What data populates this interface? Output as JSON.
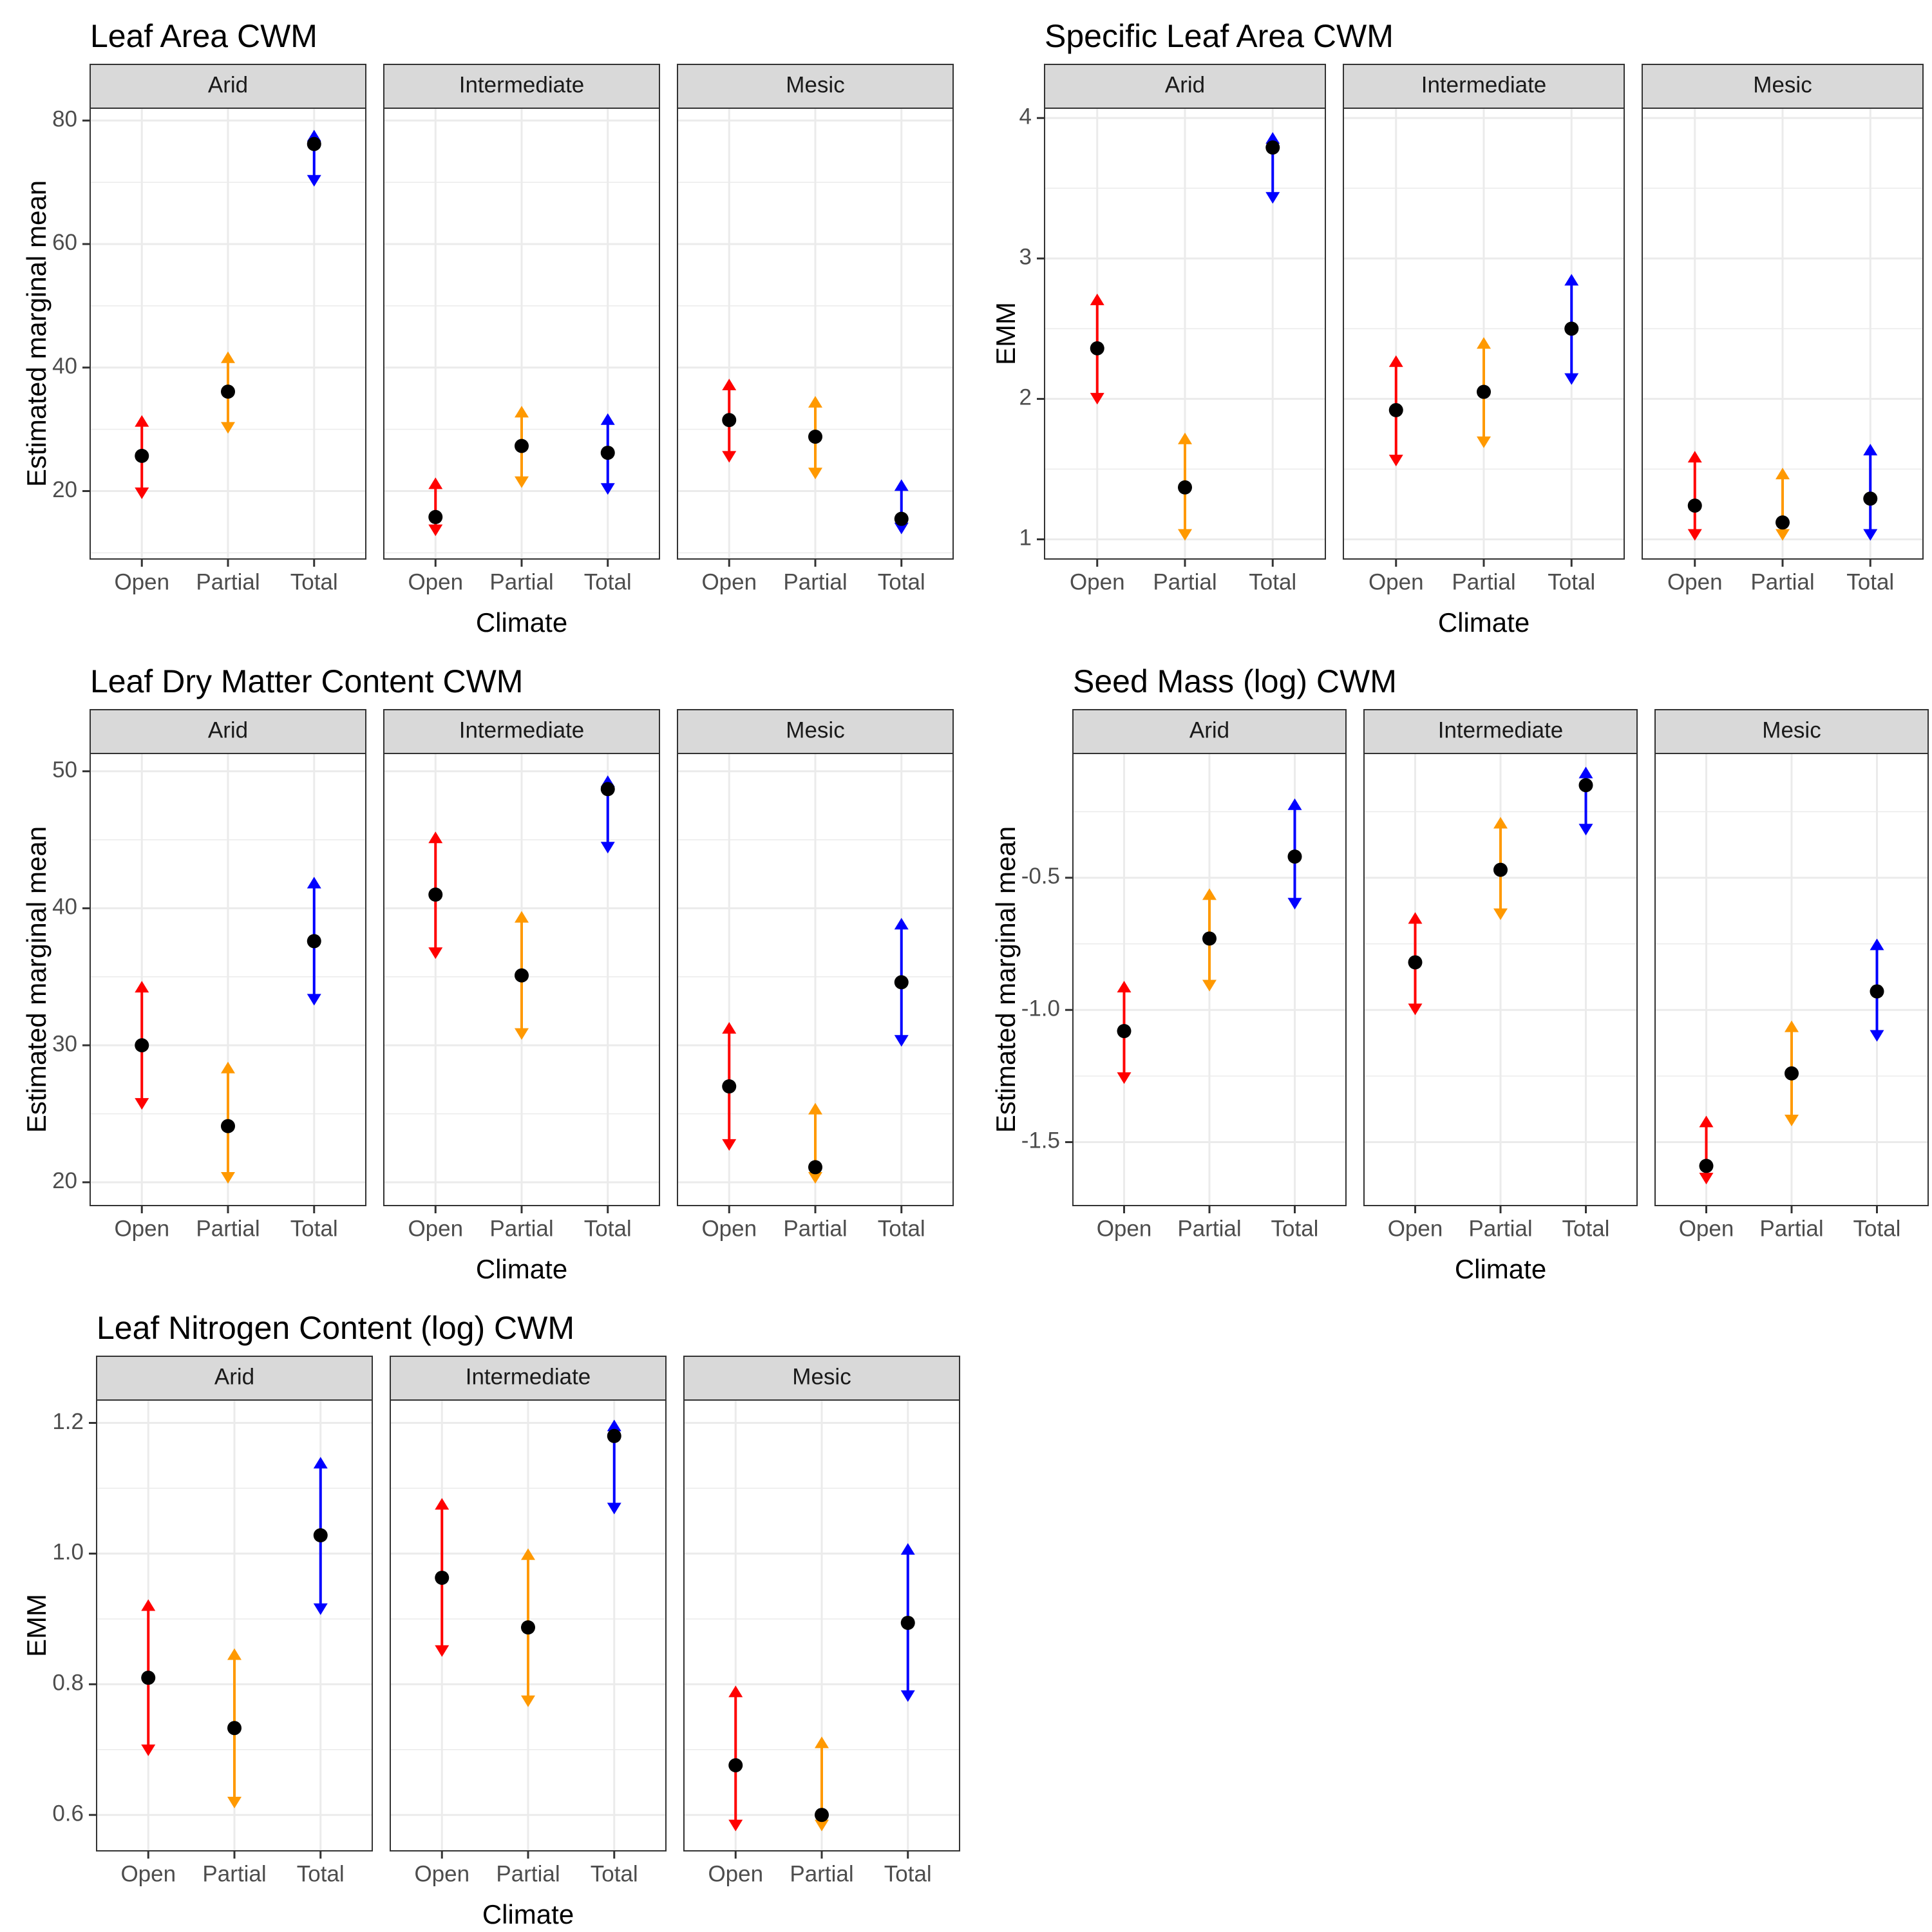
{
  "colors": {
    "Open": "#FF0000",
    "Partial": "#FF9900",
    "Total": "#0000FF",
    "point": "#000000",
    "strip_bg": "#D9D9D9",
    "grid": "#EBEBEB",
    "panel_border": "#333333"
  },
  "chart_data": [
    {
      "type": "errorbar",
      "title": "Leaf Area CWM",
      "xlabel": "Climate",
      "ylabel": "Estimated marginal mean",
      "facets": [
        "Arid",
        "Intermediate",
        "Mesic"
      ],
      "categories": [
        "Open",
        "Partial",
        "Total"
      ],
      "ylim": [
        9,
        82
      ],
      "yticks": [
        20,
        40,
        60,
        80
      ],
      "ytick_labels": [
        "20",
        "40",
        "60",
        "80"
      ],
      "data": [
        {
          "facet": "Arid",
          "category": "Open",
          "emm": 25.7,
          "lower": 18.7,
          "upper": 32.3
        },
        {
          "facet": "Arid",
          "category": "Partial",
          "emm": 36.1,
          "lower": 29.3,
          "upper": 42.6
        },
        {
          "facet": "Arid",
          "category": "Total",
          "emm": 76.2,
          "lower": 69.3,
          "upper": 78.5
        },
        {
          "facet": "Intermediate",
          "category": "Open",
          "emm": 15.8,
          "lower": 12.7,
          "upper": 22.2
        },
        {
          "facet": "Intermediate",
          "category": "Partial",
          "emm": 27.3,
          "lower": 20.5,
          "upper": 33.8
        },
        {
          "facet": "Intermediate",
          "category": "Total",
          "emm": 26.2,
          "lower": 19.4,
          "upper": 32.6
        },
        {
          "facet": "Mesic",
          "category": "Open",
          "emm": 31.5,
          "lower": 24.6,
          "upper": 38.2
        },
        {
          "facet": "Mesic",
          "category": "Partial",
          "emm": 28.8,
          "lower": 21.9,
          "upper": 35.4
        },
        {
          "facet": "Mesic",
          "category": "Total",
          "emm": 15.5,
          "lower": 13.0,
          "upper": 21.9
        }
      ]
    },
    {
      "type": "errorbar",
      "title": "Specific Leaf Area CWM",
      "xlabel": "Climate",
      "ylabel": "EMM",
      "facets": [
        "Arid",
        "Intermediate",
        "Mesic"
      ],
      "categories": [
        "Open",
        "Partial",
        "Total"
      ],
      "ylim": [
        0.86,
        4.07
      ],
      "yticks": [
        1,
        2,
        3,
        4
      ],
      "ytick_labels": [
        "1",
        "2",
        "3",
        "4"
      ],
      "data": [
        {
          "facet": "Arid",
          "category": "Open",
          "emm": 2.36,
          "lower": 1.96,
          "upper": 2.75
        },
        {
          "facet": "Arid",
          "category": "Partial",
          "emm": 1.37,
          "lower": 0.99,
          "upper": 1.76
        },
        {
          "facet": "Arid",
          "category": "Total",
          "emm": 3.79,
          "lower": 3.39,
          "upper": 3.9
        },
        {
          "facet": "Intermediate",
          "category": "Open",
          "emm": 1.92,
          "lower": 1.52,
          "upper": 2.31
        },
        {
          "facet": "Intermediate",
          "category": "Partial",
          "emm": 2.05,
          "lower": 1.65,
          "upper": 2.44
        },
        {
          "facet": "Intermediate",
          "category": "Total",
          "emm": 2.5,
          "lower": 2.1,
          "upper": 2.89
        },
        {
          "facet": "Mesic",
          "category": "Open",
          "emm": 1.24,
          "lower": 0.99,
          "upper": 1.63
        },
        {
          "facet": "Mesic",
          "category": "Partial",
          "emm": 1.12,
          "lower": 0.99,
          "upper": 1.51
        },
        {
          "facet": "Mesic",
          "category": "Total",
          "emm": 1.29,
          "lower": 0.99,
          "upper": 1.68
        }
      ]
    },
    {
      "type": "errorbar",
      "title": "Leaf Dry Matter Content CWM",
      "xlabel": "Climate",
      "ylabel": "Estimated marginal mean",
      "facets": [
        "Arid",
        "Intermediate",
        "Mesic"
      ],
      "categories": [
        "Open",
        "Partial",
        "Total"
      ],
      "ylim": [
        18.3,
        51.3
      ],
      "yticks": [
        20,
        30,
        40,
        50
      ],
      "ytick_labels": [
        "20",
        "30",
        "40",
        "50"
      ],
      "data": [
        {
          "facet": "Arid",
          "category": "Open",
          "emm": 30.0,
          "lower": 25.3,
          "upper": 34.7
        },
        {
          "facet": "Arid",
          "category": "Partial",
          "emm": 24.1,
          "lower": 19.9,
          "upper": 28.8
        },
        {
          "facet": "Arid",
          "category": "Total",
          "emm": 37.6,
          "lower": 32.9,
          "upper": 42.3
        },
        {
          "facet": "Intermediate",
          "category": "Open",
          "emm": 41.0,
          "lower": 36.3,
          "upper": 45.6
        },
        {
          "facet": "Intermediate",
          "category": "Partial",
          "emm": 35.1,
          "lower": 30.4,
          "upper": 39.8
        },
        {
          "facet": "Intermediate",
          "category": "Total",
          "emm": 48.7,
          "lower": 44.0,
          "upper": 49.7
        },
        {
          "facet": "Mesic",
          "category": "Open",
          "emm": 27.0,
          "lower": 22.3,
          "upper": 31.7
        },
        {
          "facet": "Mesic",
          "category": "Partial",
          "emm": 21.1,
          "lower": 19.9,
          "upper": 25.8
        },
        {
          "facet": "Mesic",
          "category": "Total",
          "emm": 34.6,
          "lower": 29.9,
          "upper": 39.3
        }
      ]
    },
    {
      "type": "errorbar",
      "title": "Seed Mass (log) CWM",
      "xlabel": "Climate",
      "ylabel": "Estimated marginal mean",
      "facets": [
        "Arid",
        "Intermediate",
        "Mesic"
      ],
      "categories": [
        "Open",
        "Partial",
        "Total"
      ],
      "ylim": [
        -1.74,
        -0.03
      ],
      "yticks": [
        -1.5,
        -1.0,
        -0.5
      ],
      "ytick_labels": [
        "-1.5",
        "-1.0",
        "-0.5"
      ],
      "data": [
        {
          "facet": "Arid",
          "category": "Open",
          "emm": -1.08,
          "lower": -1.28,
          "upper": -0.89
        },
        {
          "facet": "Arid",
          "category": "Partial",
          "emm": -0.73,
          "lower": -0.93,
          "upper": -0.54
        },
        {
          "facet": "Arid",
          "category": "Total",
          "emm": -0.42,
          "lower": -0.62,
          "upper": -0.2
        },
        {
          "facet": "Intermediate",
          "category": "Open",
          "emm": -0.82,
          "lower": -1.02,
          "upper": -0.63
        },
        {
          "facet": "Intermediate",
          "category": "Partial",
          "emm": -0.47,
          "lower": -0.66,
          "upper": -0.27
        },
        {
          "facet": "Intermediate",
          "category": "Total",
          "emm": -0.15,
          "lower": -0.34,
          "upper": -0.08
        },
        {
          "facet": "Mesic",
          "category": "Open",
          "emm": -1.59,
          "lower": -1.66,
          "upper": -1.4
        },
        {
          "facet": "Mesic",
          "category": "Partial",
          "emm": -1.24,
          "lower": -1.44,
          "upper": -1.04
        },
        {
          "facet": "Mesic",
          "category": "Total",
          "emm": -0.93,
          "lower": -1.12,
          "upper": -0.73
        }
      ]
    },
    {
      "type": "errorbar",
      "title": "Leaf Nitrogen Content (log) CWM",
      "xlabel": "Climate",
      "ylabel": "EMM",
      "facets": [
        "Arid",
        "Intermediate",
        "Mesic"
      ],
      "categories": [
        "Open",
        "Partial",
        "Total"
      ],
      "ylim": [
        0.545,
        1.235
      ],
      "yticks": [
        0.6,
        0.8,
        1.0,
        1.2
      ],
      "ytick_labels": [
        "0.6",
        "0.8",
        "1.0",
        "1.2"
      ],
      "data": [
        {
          "facet": "Arid",
          "category": "Open",
          "emm": 0.81,
          "lower": 0.69,
          "upper": 0.93
        },
        {
          "facet": "Arid",
          "category": "Partial",
          "emm": 0.733,
          "lower": 0.61,
          "upper": 0.855
        },
        {
          "facet": "Arid",
          "category": "Total",
          "emm": 1.028,
          "lower": 0.906,
          "upper": 1.148
        },
        {
          "facet": "Intermediate",
          "category": "Open",
          "emm": 0.963,
          "lower": 0.842,
          "upper": 1.085
        },
        {
          "facet": "Intermediate",
          "category": "Partial",
          "emm": 0.887,
          "lower": 0.765,
          "upper": 1.008
        },
        {
          "facet": "Intermediate",
          "category": "Total",
          "emm": 1.18,
          "lower": 1.06,
          "upper": 1.205
        },
        {
          "facet": "Mesic",
          "category": "Open",
          "emm": 0.676,
          "lower": 0.575,
          "upper": 0.798
        },
        {
          "facet": "Mesic",
          "category": "Partial",
          "emm": 0.6,
          "lower": 0.575,
          "upper": 0.72
        },
        {
          "facet": "Mesic",
          "category": "Total",
          "emm": 0.894,
          "lower": 0.773,
          "upper": 1.016
        }
      ]
    }
  ]
}
